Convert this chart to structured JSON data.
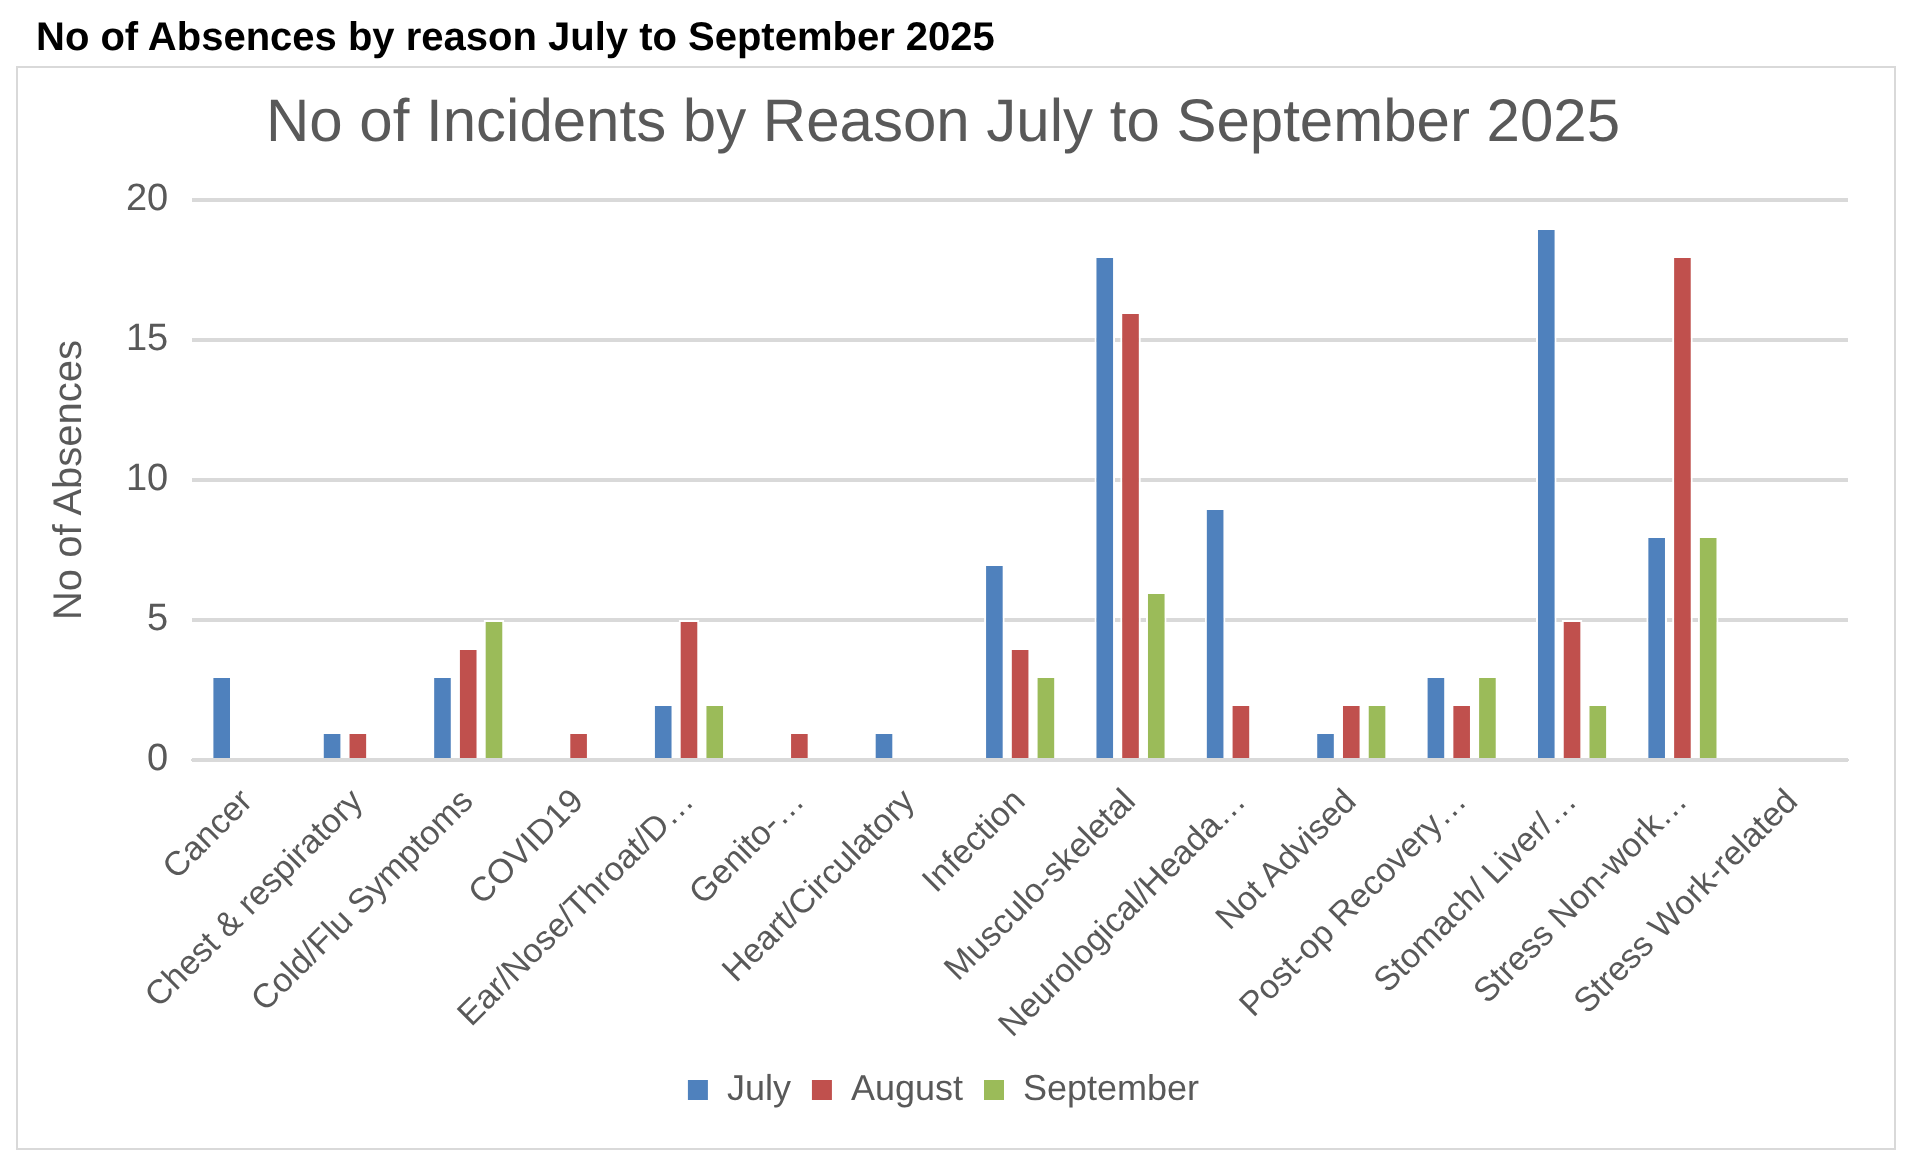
{
  "chart_data": {
    "type": "bar",
    "title": "No of Incidents by Reason July to September 2025",
    "ylabel": "No of Absences",
    "annotations": [
      "No of Absences by reason July to September 2025"
    ],
    "categories": [
      "Cancer",
      "Chest & respiratory",
      "Cold/Flu Symptoms",
      "COVID19",
      "Ear/Nose/Throat/D…",
      "Genito-…",
      "Heart/Circulatory",
      "Infection",
      "Musculo-skeletal",
      "Neurological/Heada…",
      "Not Advised",
      "Post-op Recovery…",
      "Stomach/ Liver/…",
      "Stress Non-work…",
      "Stress Work-related"
    ],
    "series": [
      {
        "name": "July",
        "color": "#4f81bd",
        "values": [
          3,
          1,
          3,
          0,
          2,
          0,
          1,
          7,
          18,
          9,
          1,
          3,
          19,
          8,
          0
        ]
      },
      {
        "name": "August",
        "color": "#c0504d",
        "values": [
          0,
          1,
          4,
          1,
          5,
          1,
          0,
          4,
          16,
          2,
          2,
          2,
          5,
          18,
          0
        ]
      },
      {
        "name": "September",
        "color": "#9bbb59",
        "values": [
          0,
          0,
          5,
          0,
          2,
          0,
          0,
          3,
          6,
          0,
          2,
          3,
          2,
          8,
          0
        ]
      }
    ],
    "ylim": [
      0,
      20
    ],
    "yticks": [
      0,
      5,
      10,
      15,
      20
    ],
    "grid": "y",
    "legend": "bottom"
  }
}
